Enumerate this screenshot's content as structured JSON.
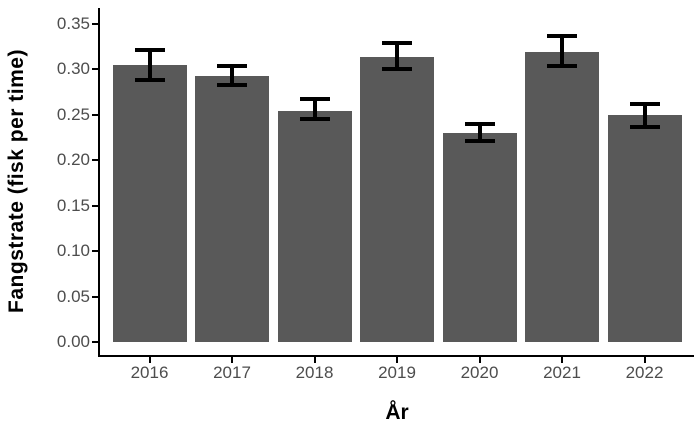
{
  "chart_data": {
    "type": "bar",
    "xlabel": "År",
    "ylabel": "Fangstrate (fisk per time)",
    "categories": [
      "2016",
      "2017",
      "2018",
      "2019",
      "2020",
      "2021",
      "2022"
    ],
    "values": [
      0.304,
      0.292,
      0.254,
      0.313,
      0.23,
      0.319,
      0.249
    ],
    "error_low": [
      0.288,
      0.282,
      0.245,
      0.3,
      0.221,
      0.303,
      0.236
    ],
    "error_high": [
      0.321,
      0.303,
      0.267,
      0.329,
      0.24,
      0.336,
      0.261
    ],
    "ylim": [
      0,
      0.35
    ],
    "y_ticks": [
      "0.00",
      "0.05",
      "0.10",
      "0.15",
      "0.20",
      "0.25",
      "0.30",
      "0.35"
    ],
    "grid": false,
    "legend": "none",
    "colors": {
      "bar_fill": "#595959",
      "error_bar": "#000000",
      "axis_line": "#000000",
      "tick_label": "#4d4d4d",
      "axis_title": "#000000",
      "background": "#ffffff"
    }
  }
}
